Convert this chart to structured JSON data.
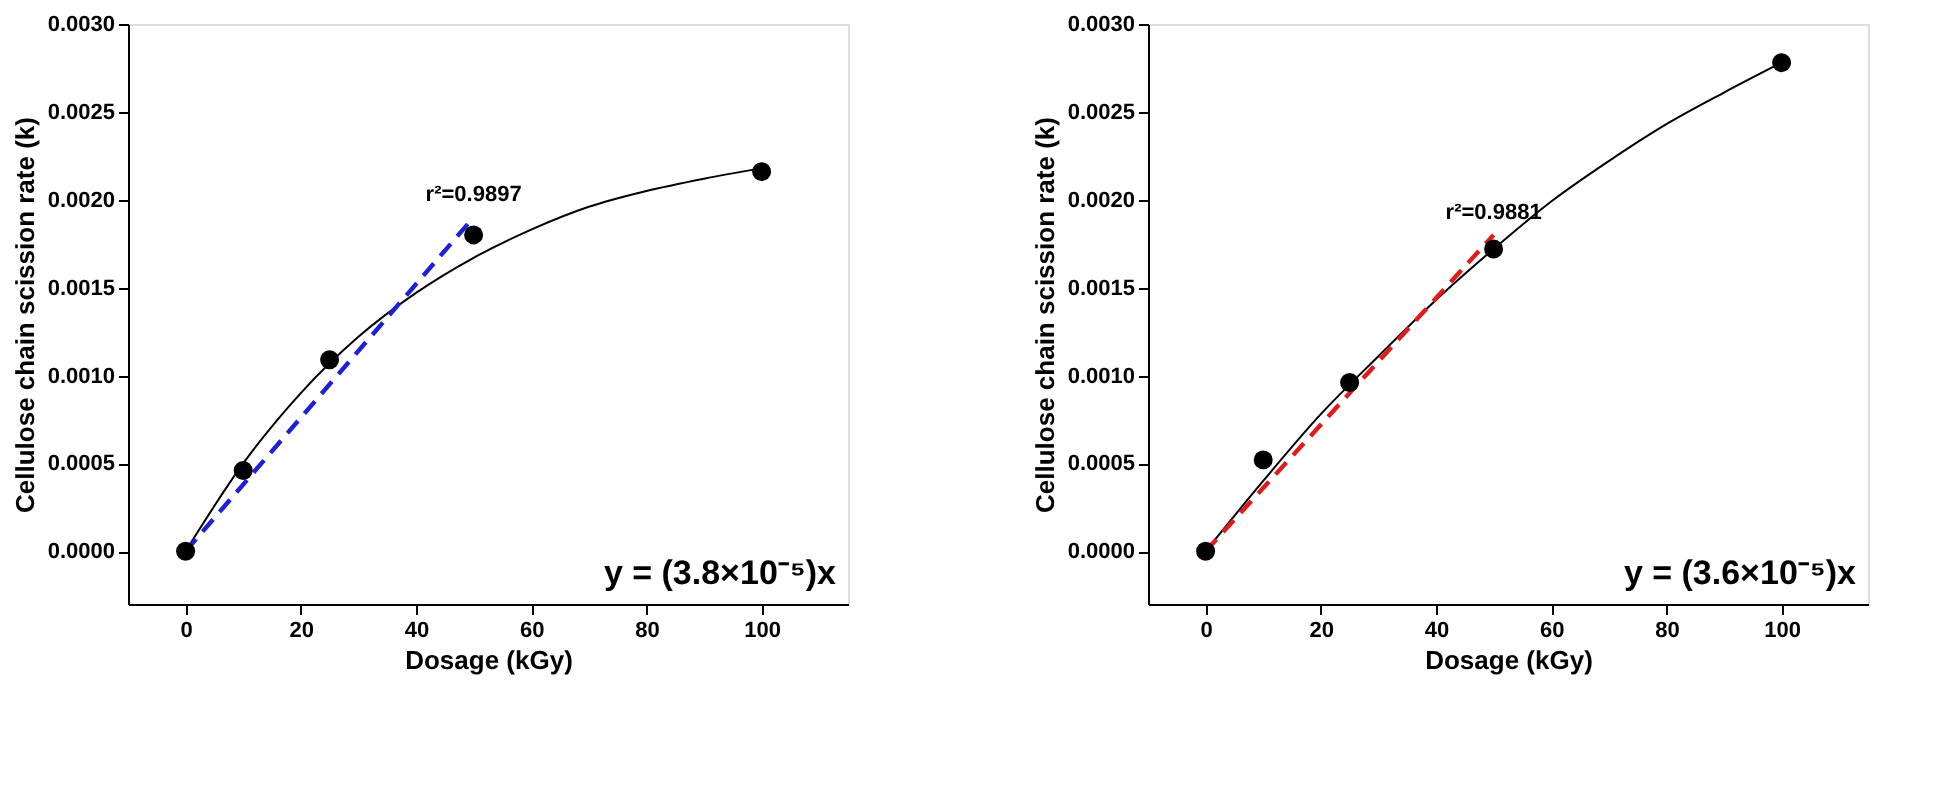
{
  "chart_data": [
    {
      "type": "scatter",
      "xlabel": "Dosage (kGy)",
      "ylabel": "Cellulose chain scission rate (k)",
      "xlim": [
        -10,
        115
      ],
      "xticks": [
        0,
        20,
        40,
        60,
        80,
        100
      ],
      "ylim": [
        -0.0003,
        0.003
      ],
      "yticks": [
        {
          "value": 0,
          "label": "0.0000"
        },
        {
          "value": 0.0005,
          "label": "0.0005"
        },
        {
          "value": 0.001,
          "label": "0.0010"
        },
        {
          "value": 0.0015,
          "label": "0.0015"
        },
        {
          "value": 0.002,
          "label": "0.0020"
        },
        {
          "value": 0.0025,
          "label": "0.0025"
        },
        {
          "value": 0.003,
          "label": "0.0030"
        }
      ],
      "grid": false,
      "legend": false,
      "series": [
        {
          "type": "line",
          "color": "#000000",
          "marker": "none",
          "line_style": "solid",
          "x": [
            0,
            10,
            20,
            30,
            40,
            50,
            60,
            70,
            80,
            90,
            100
          ],
          "values": [
            0,
            0.0005,
            0.0009,
            0.00122,
            0.00147,
            0.00167,
            0.00183,
            0.00196,
            0.00205,
            0.00212,
            0.00218
          ]
        },
        {
          "type": "line",
          "color": "#1f1fd6",
          "marker": "none",
          "line_style": "dashed",
          "x": [
            0,
            50
          ],
          "values": [
            0,
            0.0019
          ]
        },
        {
          "color": "#000000",
          "marker": "circle",
          "x": [
            0,
            10,
            25,
            50,
            100
          ],
          "values": [
            0,
            0.00046,
            0.00109,
            0.0018,
            0.00216
          ]
        }
      ],
      "annotations": [
        "r²=0.9897",
        "y = (3.8×10⁻⁵)x"
      ]
    },
    {
      "type": "scatter",
      "xlabel": "Dosage (kGy)",
      "ylabel": "Cellulose chain scission rate (k)",
      "xlim": [
        -10,
        115
      ],
      "xticks": [
        0,
        20,
        40,
        60,
        80,
        100
      ],
      "ylim": [
        -0.0003,
        0.003
      ],
      "yticks": [
        {
          "value": 0,
          "label": "0.0000"
        },
        {
          "value": 0.0005,
          "label": "0.0005"
        },
        {
          "value": 0.001,
          "label": "0.0010"
        },
        {
          "value": 0.0015,
          "label": "0.0015"
        },
        {
          "value": 0.002,
          "label": "0.0020"
        },
        {
          "value": 0.0025,
          "label": "0.0025"
        },
        {
          "value": 0.003,
          "label": "0.0030"
        }
      ],
      "grid": false,
      "legend": false,
      "series": [
        {
          "type": "line",
          "color": "#000000",
          "marker": "none",
          "line_style": "solid",
          "x": [
            0,
            10,
            20,
            30,
            40,
            50,
            60,
            70,
            80,
            90,
            100
          ],
          "values": [
            0,
            0.0004,
            0.00078,
            0.00111,
            0.00143,
            0.00172,
            0.00199,
            0.00222,
            0.00243,
            0.00261,
            0.00278
          ]
        },
        {
          "type": "line",
          "color": "#e01b1b",
          "marker": "none",
          "line_style": "dashed",
          "x": [
            0,
            50
          ],
          "values": [
            0,
            0.0018
          ]
        },
        {
          "color": "#000000",
          "marker": "circle",
          "x": [
            0,
            10,
            25,
            50,
            100
          ],
          "values": [
            0,
            0.00052,
            0.00096,
            0.00172,
            0.00278
          ]
        }
      ],
      "annotations": [
        "r²=0.9881",
        "y = (3.6×10⁻⁵)x"
      ]
    }
  ]
}
